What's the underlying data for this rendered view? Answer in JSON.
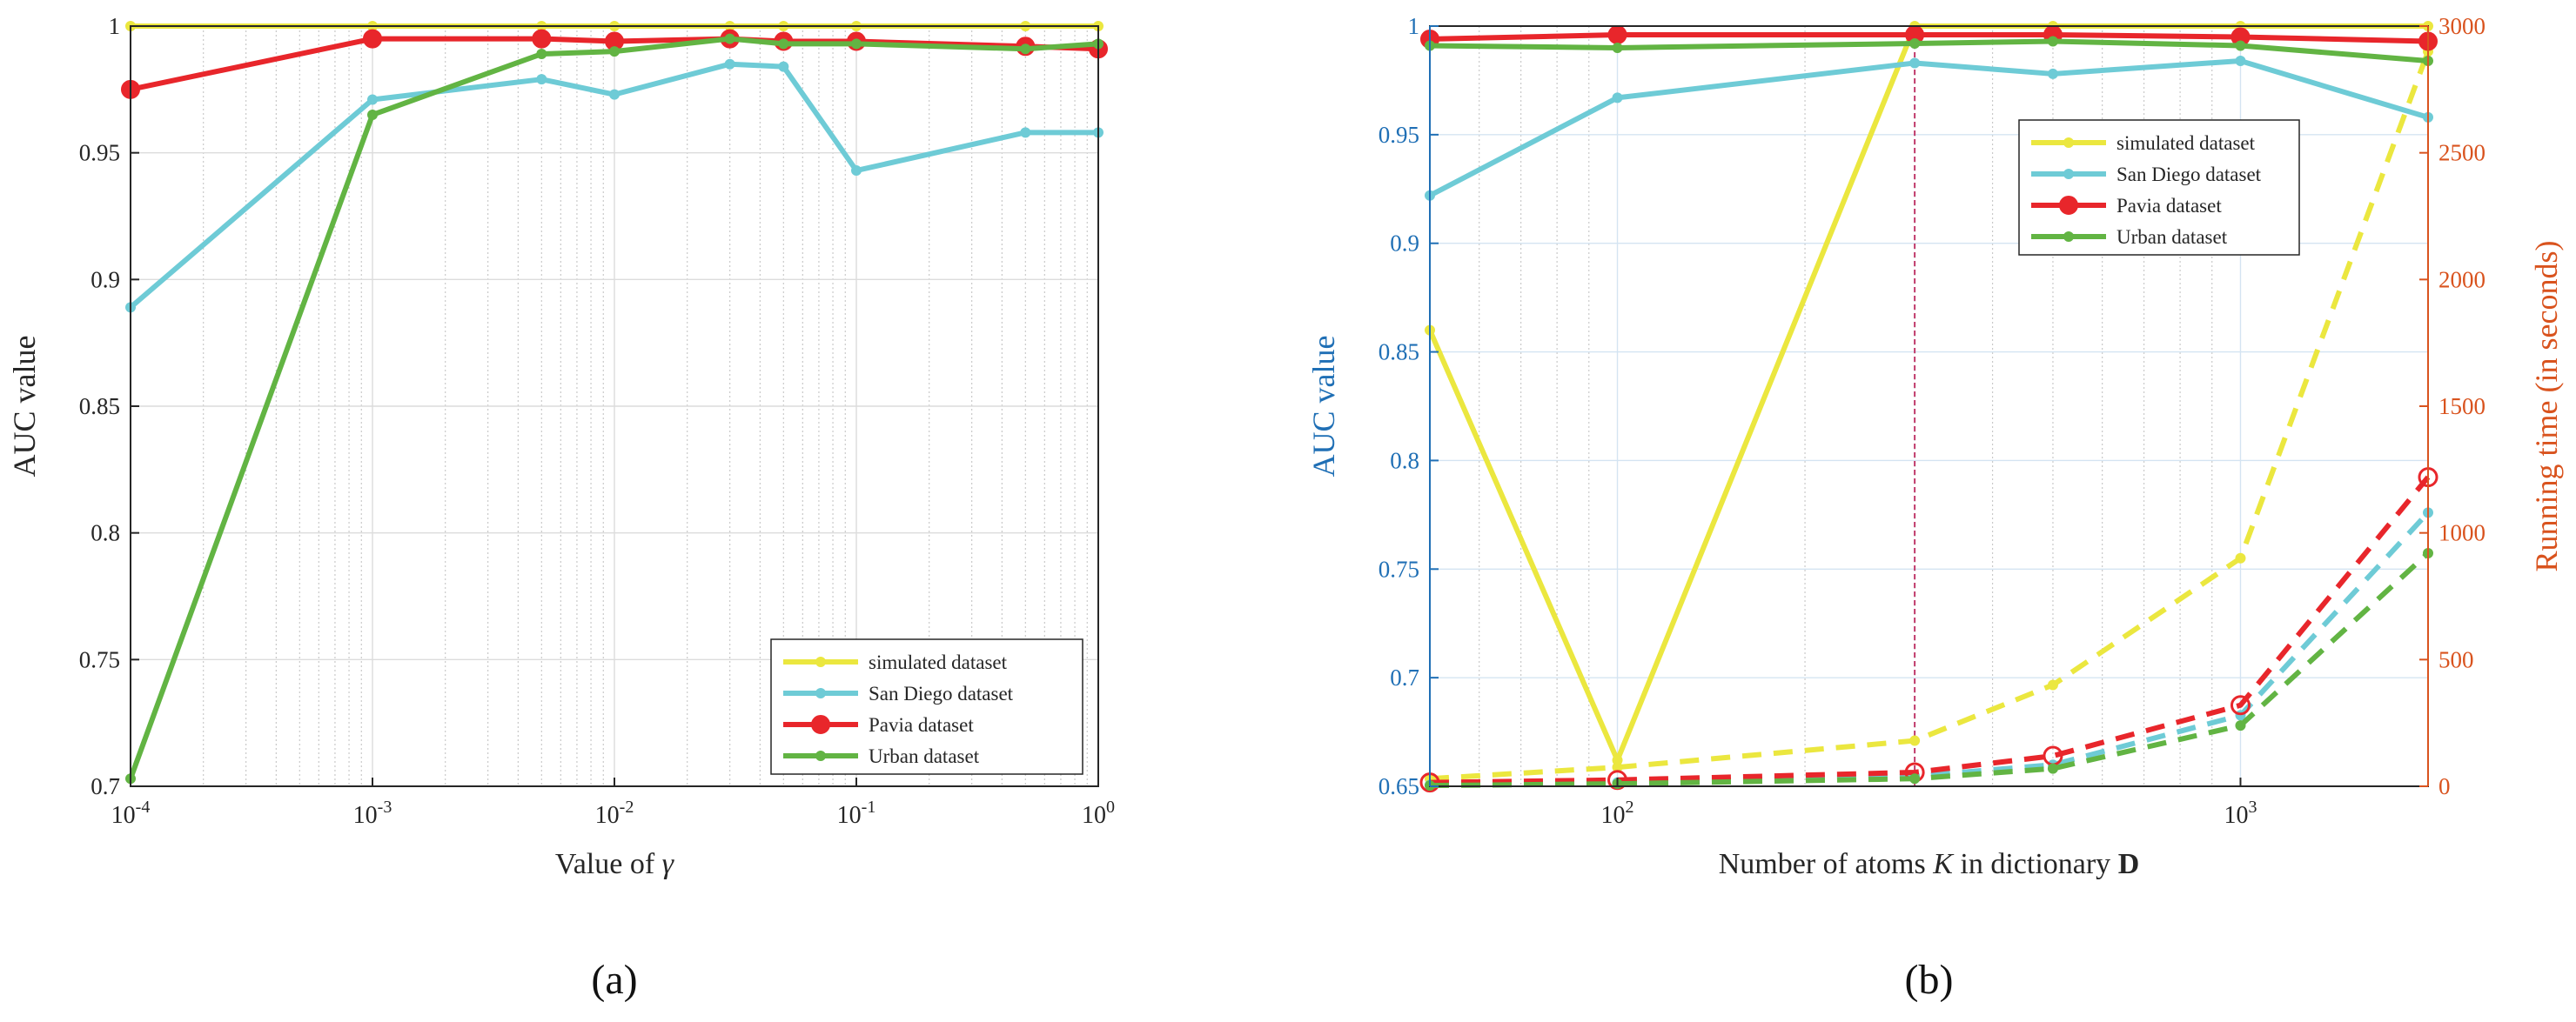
{
  "chart_data": [
    {
      "type": "line",
      "panel_label": "(a)",
      "xlabel": "Value of γ",
      "ylabel": "AUC value",
      "xscale": "log",
      "xlim": [
        0.0001,
        1
      ],
      "ylim": [
        0.7,
        1
      ],
      "x_ticks": [
        0.0001,
        0.001,
        0.01,
        0.1,
        1
      ],
      "x_tick_labels": [
        {
          "base": "10",
          "exp": "-4"
        },
        {
          "base": "10",
          "exp": "-3"
        },
        {
          "base": "10",
          "exp": "-2"
        },
        {
          "base": "10",
          "exp": "-1"
        },
        {
          "base": "10",
          "exp": "0"
        }
      ],
      "y_ticks": [
        0.7,
        0.75,
        0.8,
        0.85,
        0.9,
        0.95,
        1
      ],
      "y_tick_labels": [
        "0.7",
        "0.75",
        "0.8",
        "0.85",
        "0.9",
        "0.95",
        "1"
      ],
      "grid": true,
      "legend_position": "bottom-right",
      "series": [
        {
          "name": "simulated dataset",
          "color": "#ebe73f",
          "x": [
            0.0001,
            0.001,
            0.005,
            0.01,
            0.03,
            0.05,
            0.1,
            0.5,
            1
          ],
          "values": [
            1.0,
            1.0,
            1.0,
            1.0,
            1.0,
            1.0,
            1.0,
            1.0,
            1.0
          ]
        },
        {
          "name": "San Diego dataset",
          "color": "#6ecbd6",
          "x": [
            0.0001,
            0.001,
            0.005,
            0.01,
            0.03,
            0.05,
            0.1,
            0.5,
            1
          ],
          "values": [
            0.889,
            0.971,
            0.979,
            0.973,
            0.985,
            0.984,
            0.943,
            0.958,
            0.958
          ]
        },
        {
          "name": "Pavia dataset",
          "color": "#e8262b",
          "x": [
            0.0001,
            0.001,
            0.005,
            0.01,
            0.03,
            0.05,
            0.1,
            0.5,
            1
          ],
          "values": [
            0.975,
            0.995,
            0.995,
            0.994,
            0.995,
            0.994,
            0.994,
            0.992,
            0.991
          ]
        },
        {
          "name": "Urban dataset",
          "color": "#62b443",
          "x": [
            0.0001,
            0.001,
            0.005,
            0.01,
            0.03,
            0.05,
            0.1,
            0.5,
            1
          ],
          "values": [
            0.703,
            0.965,
            0.989,
            0.99,
            0.995,
            0.993,
            0.993,
            0.991,
            0.993
          ]
        }
      ]
    },
    {
      "type": "line",
      "panel_label": "(b)",
      "xlabel": "Number of atoms K in dictionary D",
      "ylabel": "AUC value",
      "y2label": "Running time (in seconds)",
      "xscale": "log",
      "xlim": [
        50,
        2000
      ],
      "ylim": [
        0.65,
        1
      ],
      "y2lim": [
        0,
        3000
      ],
      "x_ticks": [
        100,
        1000
      ],
      "x_tick_labels": [
        {
          "base": "10",
          "exp": "2"
        },
        {
          "base": "10",
          "exp": "3"
        }
      ],
      "y_ticks": [
        0.65,
        0.7,
        0.75,
        0.8,
        0.85,
        0.9,
        0.95,
        1
      ],
      "y_tick_labels": [
        "0.65",
        "0.7",
        "0.75",
        "0.8",
        "0.85",
        "0.9",
        "0.95",
        "1"
      ],
      "y2_ticks": [
        0,
        500,
        1000,
        1500,
        2000,
        2500,
        3000
      ],
      "y2_tick_labels": [
        "0",
        "500",
        "1000",
        "1500",
        "2000",
        "2500",
        "3000"
      ],
      "left_axis_color": "#1f6fb5",
      "right_axis_color": "#d9531e",
      "grid": true,
      "marker_line_x": 300,
      "legend_position": "top-right",
      "series": [
        {
          "name": "simulated dataset",
          "color": "#ebe73f",
          "x": [
            50,
            100,
            300,
            500,
            1000,
            2000
          ],
          "values": [
            0.86,
            0.662,
            1.0,
            1.0,
            1.0,
            1.0
          ],
          "time_x": [
            50,
            100,
            300,
            500,
            1000,
            2000
          ],
          "time_values": [
            30,
            75,
            180,
            400,
            900,
            2900
          ]
        },
        {
          "name": "San Diego dataset",
          "color": "#6ecbd6",
          "x": [
            50,
            100,
            300,
            500,
            1000,
            2000
          ],
          "values": [
            0.922,
            0.967,
            0.983,
            0.978,
            0.984,
            0.958
          ],
          "time_x": [
            50,
            100,
            300,
            500,
            1000,
            2000
          ],
          "time_values": [
            5,
            15,
            40,
            85,
            280,
            1080
          ]
        },
        {
          "name": "Pavia dataset",
          "color": "#e8262b",
          "x": [
            50,
            100,
            300,
            500,
            1000,
            2000
          ],
          "values": [
            0.994,
            0.996,
            0.996,
            0.996,
            0.995,
            0.993
          ],
          "time_x": [
            50,
            100,
            300,
            500,
            1000,
            2000
          ],
          "time_values": [
            15,
            25,
            55,
            120,
            320,
            1220
          ]
        },
        {
          "name": "Urban dataset",
          "color": "#62b443",
          "x": [
            50,
            100,
            300,
            500,
            1000,
            2000
          ],
          "values": [
            0.991,
            0.99,
            0.992,
            0.993,
            0.991,
            0.984
          ],
          "time_x": [
            50,
            100,
            300,
            500,
            1000,
            2000
          ],
          "time_values": [
            3,
            10,
            30,
            70,
            240,
            920
          ]
        }
      ]
    }
  ]
}
